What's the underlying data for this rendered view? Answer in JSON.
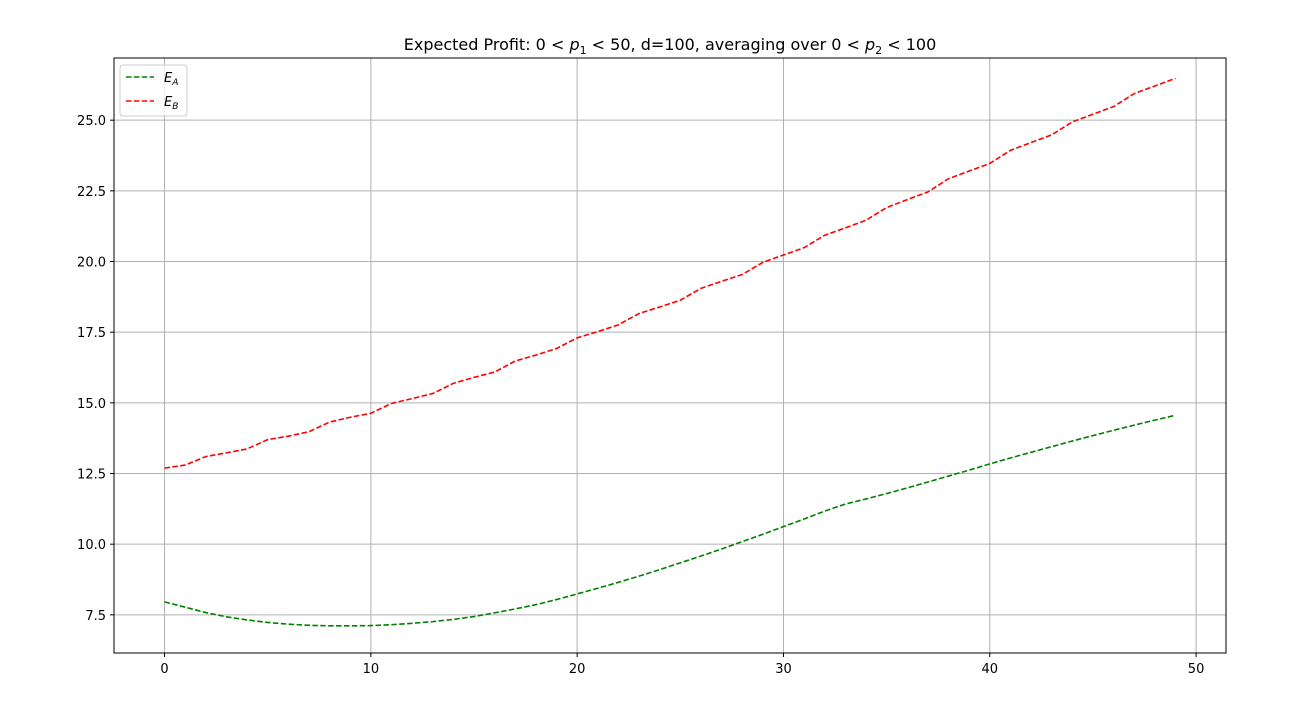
{
  "chart_data": {
    "type": "line",
    "title": "Expected Profit: 0 < p1 < 50, d=100, averaging over 0 < p2 < 100",
    "title_parts": {
      "t1": "Expected Profit: 0 < ",
      "v1": "p",
      "s1": "1",
      "t2": " < 50, d=100, averaging over 0 < ",
      "v2": "p",
      "s2": "2",
      "t3": " < 100"
    },
    "xlabel": "",
    "ylabel": "",
    "xlim": [
      -2.45,
      51.45
    ],
    "ylim": [
      6.15,
      27.2
    ],
    "xticks": [
      0,
      10,
      20,
      30,
      40,
      50
    ],
    "yticks": [
      7.5,
      10.0,
      12.5,
      15.0,
      17.5,
      20.0,
      22.5,
      25.0
    ],
    "grid": true,
    "legend_position": "upper-left",
    "x": [
      0,
      1,
      2,
      3,
      4,
      5,
      6,
      7,
      8,
      9,
      10,
      11,
      12,
      13,
      14,
      15,
      16,
      17,
      18,
      19,
      20,
      21,
      22,
      23,
      24,
      25,
      26,
      27,
      28,
      29,
      30,
      31,
      32,
      33,
      34,
      35,
      36,
      37,
      38,
      39,
      40,
      41,
      42,
      43,
      44,
      45,
      46,
      47,
      48,
      49
    ],
    "series": [
      {
        "name": "E_A",
        "legend_base": "E",
        "legend_sub": "A",
        "color": "#008000",
        "dash": "dashed",
        "values": [
          7.96,
          7.77,
          7.58,
          7.43,
          7.32,
          7.23,
          7.17,
          7.13,
          7.11,
          7.11,
          7.12,
          7.15,
          7.2,
          7.26,
          7.34,
          7.44,
          7.57,
          7.71,
          7.86,
          8.04,
          8.24,
          8.44,
          8.65,
          8.87,
          9.1,
          9.34,
          9.58,
          9.83,
          10.09,
          10.35,
          10.62,
          10.89,
          11.17,
          11.42,
          11.6,
          11.79,
          11.99,
          12.2,
          12.41,
          12.62,
          12.84,
          13.05,
          13.25,
          13.45,
          13.65,
          13.84,
          14.03,
          14.21,
          14.39,
          14.56
        ]
      },
      {
        "name": "E_B",
        "legend_base": "E",
        "legend_sub": "B",
        "color": "#ff0000",
        "dash": "dashed",
        "values": [
          12.69,
          12.8,
          13.1,
          13.23,
          13.37,
          13.7,
          13.82,
          13.98,
          14.32,
          14.49,
          14.63,
          14.98,
          15.15,
          15.33,
          15.69,
          15.9,
          16.09,
          16.48,
          16.69,
          16.92,
          17.3,
          17.52,
          17.76,
          18.16,
          18.39,
          18.63,
          19.05,
          19.3,
          19.54,
          19.97,
          20.23,
          20.49,
          20.93,
          21.19,
          21.46,
          21.91,
          22.19,
          22.46,
          22.93,
          23.2,
          23.47,
          23.93,
          24.21,
          24.48,
          24.94,
          25.21,
          25.48,
          25.94,
          26.21,
          26.48
        ]
      }
    ]
  }
}
